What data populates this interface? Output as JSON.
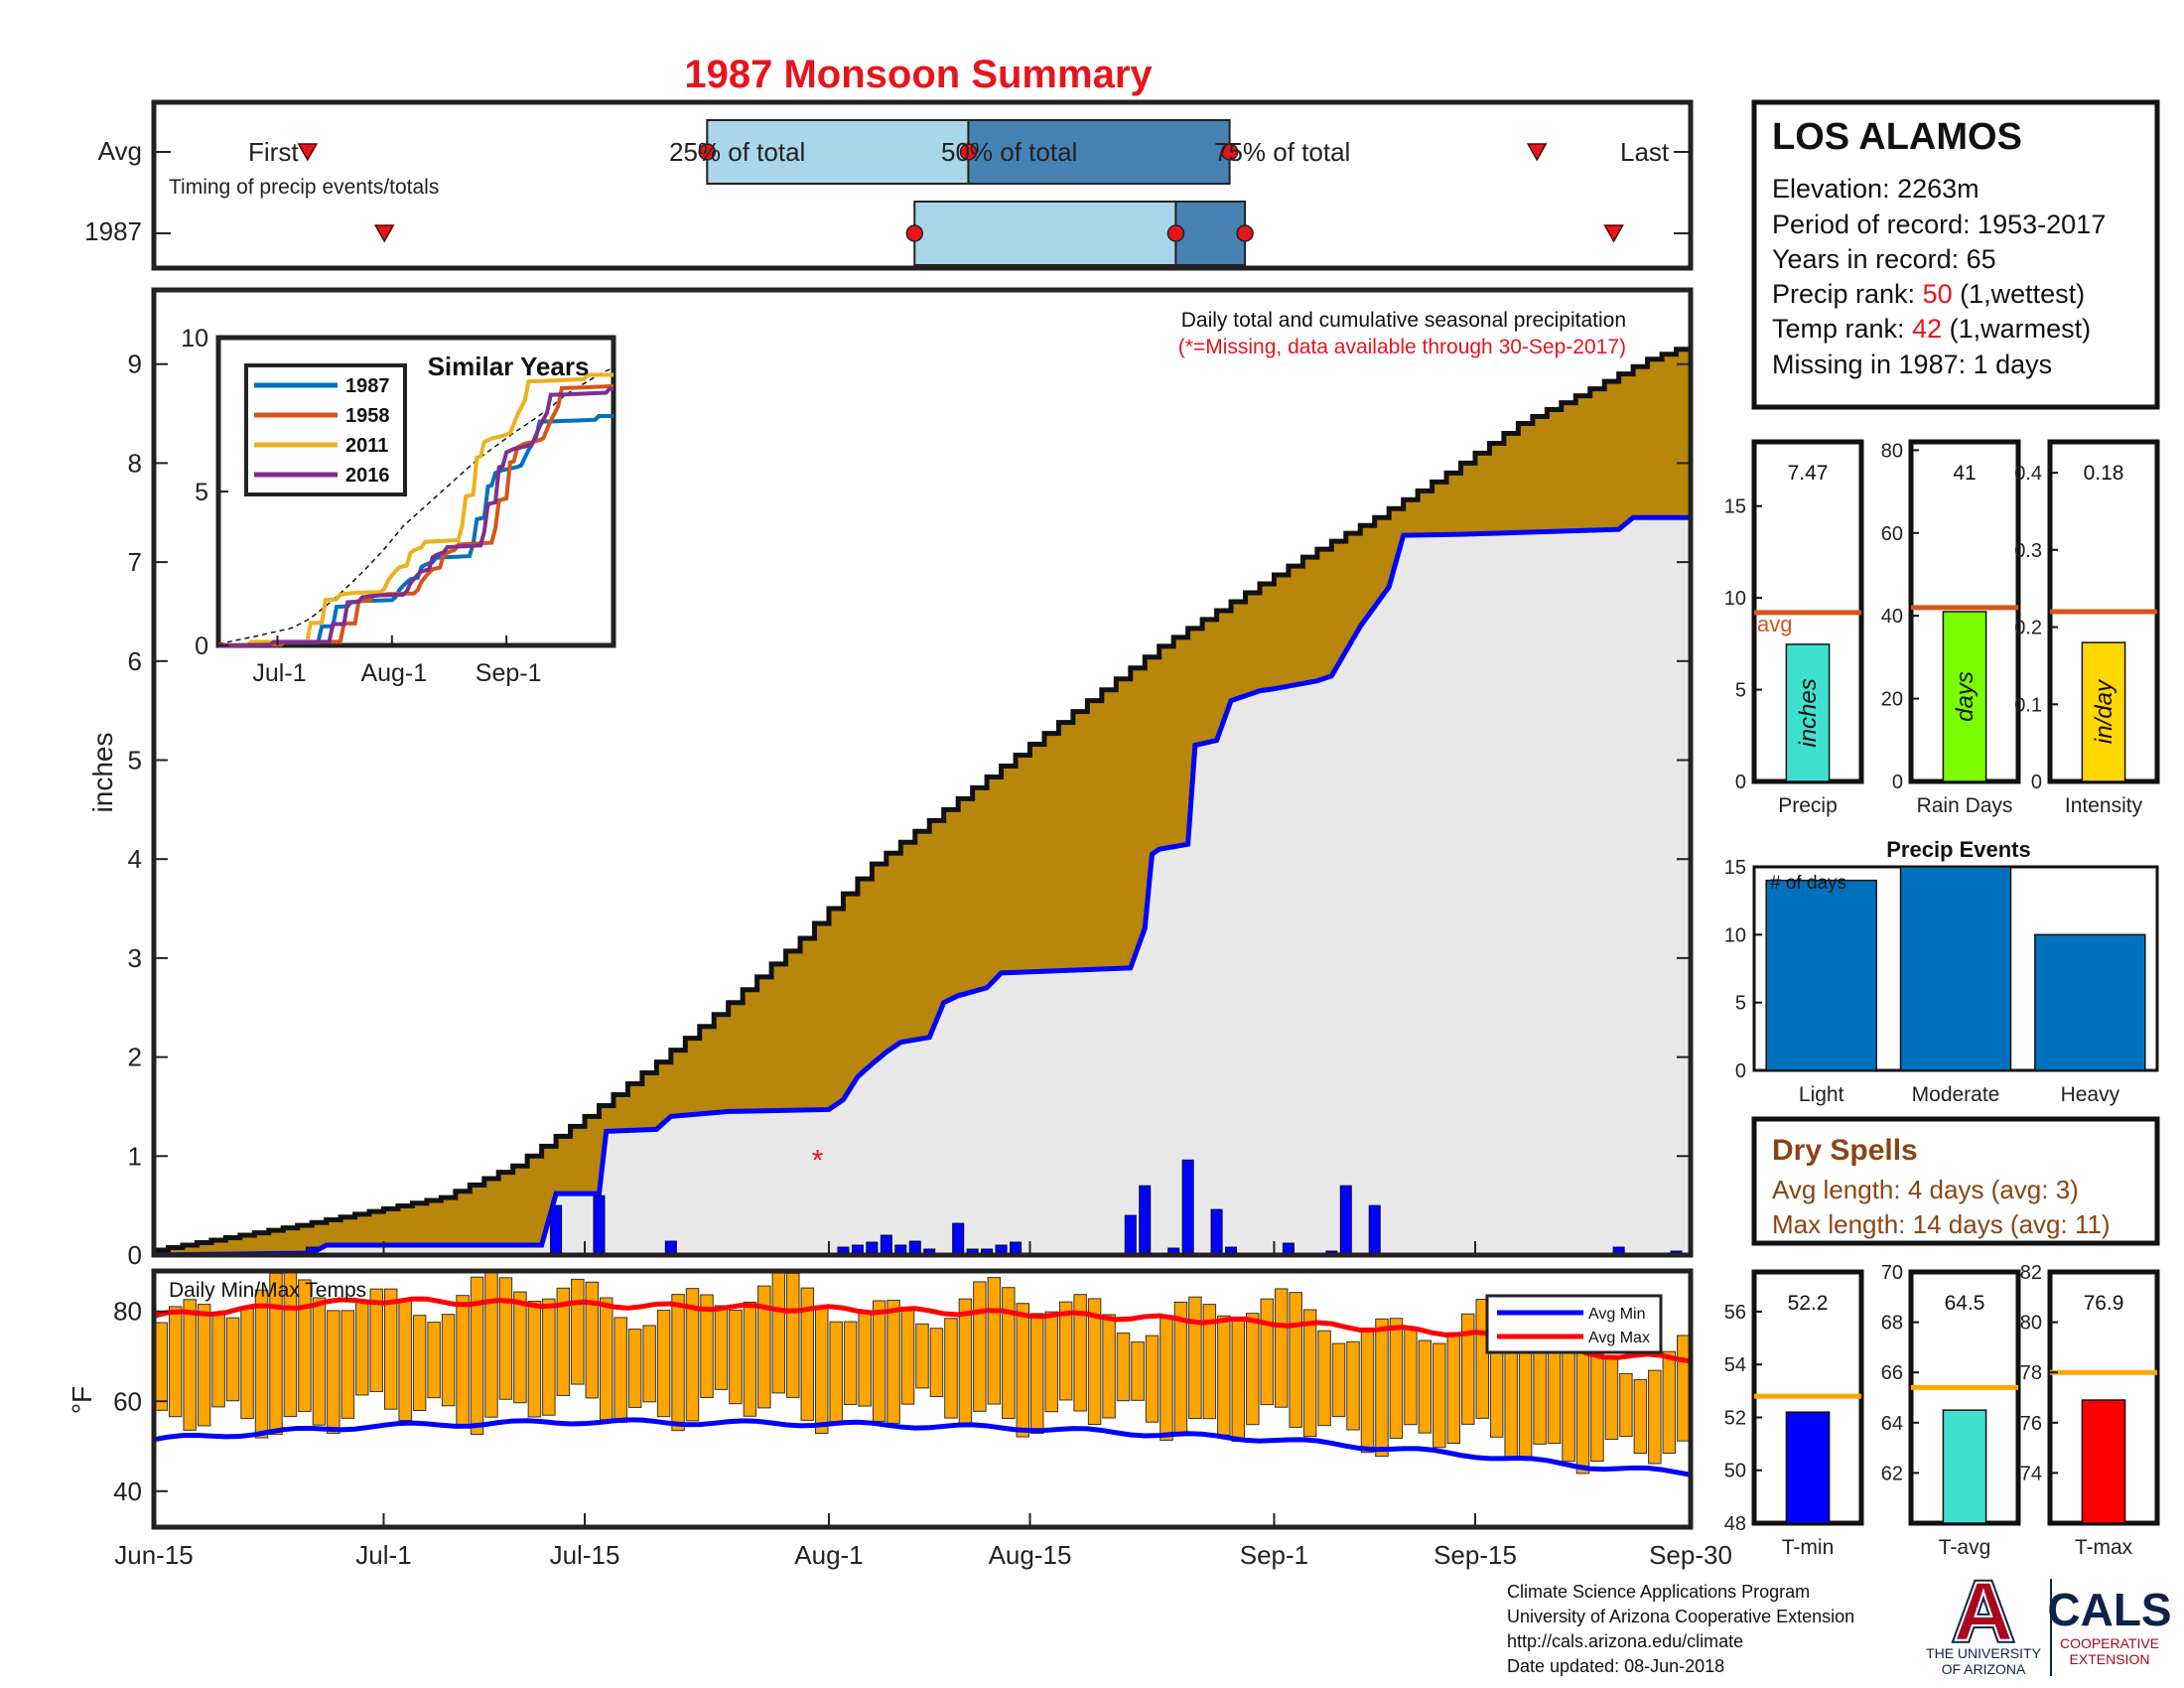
{
  "title": "1987 Monsoon Summary",
  "timing": {
    "avg_label": "Avg",
    "year_label": "1987",
    "caption": "Timing of precip events/totals",
    "first_label": "First",
    "last_label": "Last",
    "q25_label": "25% of total",
    "q50_label": "50% of total",
    "q75_label": "75% of total",
    "avg": {
      "first": 10,
      "q25": 36,
      "q50": 53,
      "q75": 70,
      "last": 90
    },
    "year": {
      "first": 15,
      "q25": 49.5,
      "q50": 66.5,
      "q75": 71,
      "last": 95
    }
  },
  "station": {
    "name": "LOS ALAMOS",
    "elevation": "Elevation: 2263m",
    "period": "Period of record: 1953-2017",
    "years": "Years in record: 65",
    "precip_rank_prefix": "Precip rank: ",
    "precip_rank_value": "50",
    "precip_rank_suffix": " (1,wettest)",
    "temp_rank_prefix": "Temp rank: ",
    "temp_rank_value": "42",
    "temp_rank_suffix": " (1,warmest)",
    "missing": "Missing in 1987: 1 days"
  },
  "precip_note": {
    "line1": "Daily total and cumulative seasonal precipitation",
    "line2": "(*=Missing, data available through 30-Sep-2017)"
  },
  "similar": {
    "title": "Similar Years",
    "legend": [
      "1987",
      "1958",
      "2011",
      "2016"
    ],
    "colors": [
      "#0072bd",
      "#d95319",
      "#edb120",
      "#7e2f8e"
    ],
    "y_ticks": [
      "0",
      "5",
      "10"
    ],
    "x_ticks": [
      "Jul-1",
      "Aug-1",
      "Sep-1"
    ]
  },
  "colors": {
    "title": "#e8141b",
    "cum_fill": "#b8860b",
    "gray_fill": "#e8e8e8",
    "year_line": "#0000ff",
    "daily_bar": "#0000ff",
    "temp_bar": "#ffa500",
    "avg_max": "#ff0000",
    "avg_min": "#0000ff",
    "avg_marker": "#d95319",
    "precip_bar": "#40e0d0",
    "rain_bar": "#7cfc00",
    "intensity_bar": "#ffd700",
    "events_bar": "#0072bd",
    "tmin_bar": "#0000ff",
    "tavg_bar": "#40e0d0",
    "tmax_bar": "#ff0000",
    "temp_avg_line": "#ffa500",
    "dry_text": "#8b4513"
  },
  "chart_data": [
    {
      "type": "area",
      "name": "cumulative_precip",
      "ylabel": "inches",
      "ylim": [
        0,
        9.5
      ],
      "y_ticks": [
        0,
        1,
        2,
        3,
        4,
        5,
        6,
        7,
        8,
        9
      ],
      "x_ticks": [
        "Jun-15",
        "Jul-1",
        "Jul-15",
        "Aug-1",
        "Aug-15",
        "Sep-1",
        "Sep-15",
        "Sep-30"
      ],
      "x_tick_days": [
        0,
        16,
        30,
        47,
        61,
        78,
        92,
        107
      ],
      "avg_cumulative": [
        [
          0,
          0.05
        ],
        [
          10,
          0.3
        ],
        [
          20,
          0.58
        ],
        [
          25,
          0.9
        ],
        [
          30,
          1.4
        ],
        [
          35,
          1.95
        ],
        [
          40,
          2.55
        ],
        [
          45,
          3.2
        ],
        [
          50,
          3.95
        ],
        [
          55,
          4.5
        ],
        [
          60,
          5.05
        ],
        [
          65,
          5.6
        ],
        [
          70,
          6.15
        ],
        [
          75,
          6.6
        ],
        [
          80,
          7.05
        ],
        [
          85,
          7.45
        ],
        [
          90,
          7.9
        ],
        [
          95,
          8.4
        ],
        [
          100,
          8.75
        ],
        [
          104,
          9.05
        ],
        [
          107,
          9.2
        ]
      ],
      "year_cumulative": [
        [
          0,
          0
        ],
        [
          11,
          0.02
        ],
        [
          12,
          0.1
        ],
        [
          27,
          0.1
        ],
        [
          28,
          0.62
        ],
        [
          31,
          0.62
        ],
        [
          31.5,
          1.25
        ],
        [
          35,
          1.27
        ],
        [
          36,
          1.4
        ],
        [
          40,
          1.45
        ],
        [
          47,
          1.47
        ],
        [
          48,
          1.57
        ],
        [
          49,
          1.8
        ],
        [
          50,
          1.93
        ],
        [
          51,
          2.05
        ],
        [
          52,
          2.15
        ],
        [
          54,
          2.2
        ],
        [
          55,
          2.55
        ],
        [
          56,
          2.62
        ],
        [
          58,
          2.7
        ],
        [
          59,
          2.85
        ],
        [
          68,
          2.9
        ],
        [
          69,
          3.3
        ],
        [
          69.5,
          4.05
        ],
        [
          70,
          4.1
        ],
        [
          72,
          4.15
        ],
        [
          72.5,
          5.15
        ],
        [
          74,
          5.2
        ],
        [
          75,
          5.6
        ],
        [
          77,
          5.7
        ],
        [
          78,
          5.72
        ],
        [
          81,
          5.8
        ],
        [
          82,
          5.85
        ],
        [
          84,
          6.35
        ],
        [
          86,
          6.75
        ],
        [
          87,
          7.27
        ],
        [
          91,
          7.28
        ],
        [
          102,
          7.33
        ],
        [
          103,
          7.45
        ],
        [
          107,
          7.45
        ]
      ],
      "daily": [
        [
          11,
          0.08
        ],
        [
          28,
          0.5
        ],
        [
          31,
          0.6
        ],
        [
          36,
          0.14
        ],
        [
          48,
          0.08
        ],
        [
          49,
          0.1
        ],
        [
          50,
          0.13
        ],
        [
          51,
          0.2
        ],
        [
          52,
          0.1
        ],
        [
          53,
          0.14
        ],
        [
          54,
          0.06
        ],
        [
          56,
          0.32
        ],
        [
          57,
          0.06
        ],
        [
          58,
          0.06
        ],
        [
          59,
          0.1
        ],
        [
          60,
          0.13
        ],
        [
          68,
          0.4
        ],
        [
          69,
          0.7
        ],
        [
          71,
          0.07
        ],
        [
          72,
          0.96
        ],
        [
          74,
          0.46
        ],
        [
          75,
          0.08
        ],
        [
          79,
          0.12
        ],
        [
          82,
          0.04
        ],
        [
          83,
          0.7
        ],
        [
          85,
          0.5
        ],
        [
          102,
          0.08
        ],
        [
          106,
          0.04
        ]
      ],
      "missing": [
        [
          46,
          1.0
        ]
      ]
    },
    {
      "type": "bar",
      "name": "daily_temps",
      "title": "Daily Min/Max Temps",
      "ylabel": "°F",
      "ylim": [
        32,
        89
      ],
      "y_ticks": [
        40,
        60,
        80
      ],
      "legend": [
        "Avg Min",
        "Avg Max"
      ],
      "avg_max": [
        [
          0,
          79
        ],
        [
          15,
          82.5
        ],
        [
          30,
          81.5
        ],
        [
          47,
          80.5
        ],
        [
          61,
          79.5
        ],
        [
          78,
          77.5
        ],
        [
          92,
          75
        ],
        [
          100,
          70.5
        ],
        [
          107,
          69.5
        ]
      ],
      "avg_min": [
        [
          0,
          51.5
        ],
        [
          15,
          54.5
        ],
        [
          30,
          55.5
        ],
        [
          47,
          55
        ],
        [
          61,
          54
        ],
        [
          78,
          51.5
        ],
        [
          92,
          48
        ],
        [
          100,
          45.5
        ],
        [
          107,
          44
        ]
      ]
    },
    {
      "type": "bar",
      "name": "precip_total",
      "categories": [
        "Precip"
      ],
      "values": [
        7.47
      ],
      "value_label": "7.47",
      "avg": 9.2,
      "avg_label": "avg",
      "unit": "inches",
      "ylim": [
        0,
        18.5
      ],
      "y_ticks": [
        0,
        5,
        10,
        15
      ]
    },
    {
      "type": "bar",
      "name": "rain_days",
      "categories": [
        "Rain Days"
      ],
      "values": [
        41
      ],
      "value_label": "41",
      "avg": 42,
      "unit": "days",
      "ylim": [
        0,
        82
      ],
      "y_ticks": [
        0,
        20,
        40,
        60,
        80
      ]
    },
    {
      "type": "bar",
      "name": "intensity",
      "categories": [
        "Intensity"
      ],
      "values": [
        0.18
      ],
      "value_label": "0.18",
      "avg": 0.22,
      "unit": "in/day",
      "ylim": [
        0,
        0.44
      ],
      "y_ticks": [
        "0",
        "0.1",
        "0.2",
        "0.3",
        "0.4"
      ]
    },
    {
      "type": "bar",
      "name": "precip_events",
      "title": "Precip Events",
      "ylabel": "# of days",
      "categories": [
        "Light",
        "Moderate",
        "Heavy"
      ],
      "values": [
        14,
        15,
        10
      ],
      "ylim": [
        0,
        15
      ],
      "y_ticks": [
        0,
        5,
        10,
        15
      ]
    },
    {
      "type": "bar",
      "name": "t_min",
      "categories": [
        "T-min"
      ],
      "values": [
        52.2
      ],
      "value_label": "52.2",
      "avg": 52.8,
      "ylim": [
        48,
        57.5
      ],
      "y_ticks": [
        48,
        50,
        52,
        54,
        56
      ]
    },
    {
      "type": "bar",
      "name": "t_avg",
      "categories": [
        "T-avg"
      ],
      "values": [
        64.5
      ],
      "value_label": "64.5",
      "avg": 65.4,
      "ylim": [
        60,
        70
      ],
      "y_ticks": [
        62,
        64,
        66,
        68,
        70
      ]
    },
    {
      "type": "bar",
      "name": "t_max",
      "categories": [
        "T-max"
      ],
      "values": [
        76.9
      ],
      "value_label": "76.9",
      "avg": 78,
      "ylim": [
        72,
        82
      ],
      "y_ticks": [
        74,
        76,
        78,
        80,
        82
      ]
    }
  ],
  "dry_spells": {
    "title": "Dry Spells",
    "avg_length": "Avg length: 4 days (avg: 3)",
    "max_length": "Max length: 14 days (avg: 11)"
  },
  "footer": {
    "line1": "Climate Science Applications Program",
    "line2": "University of Arizona Cooperative Extension",
    "line3": "http://cals.arizona.edu/climate",
    "line4": " Date updated: 08-Jun-2018"
  },
  "logos": {
    "ua_letter": "A",
    "ua_line1": "THE UNIVERSITY",
    "ua_line2": "OF ARIZONA",
    "cals": "CALS",
    "cals_line1": "COOPERATIVE",
    "cals_line2": "EXTENSION"
  }
}
